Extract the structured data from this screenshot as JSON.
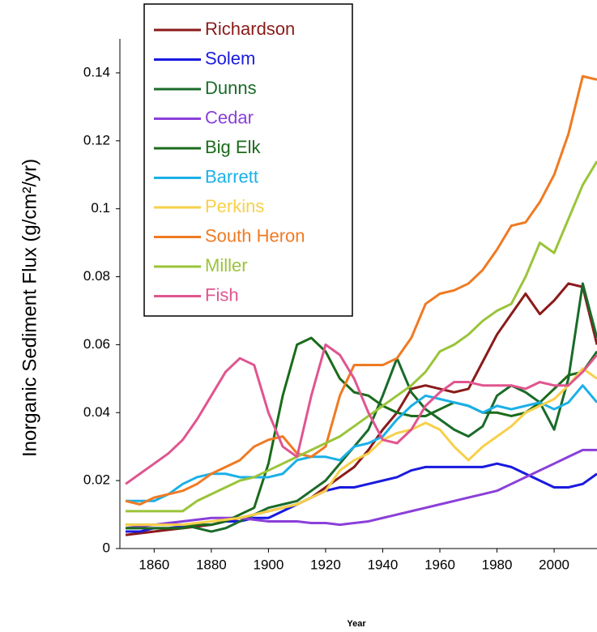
{
  "chart_data": {
    "type": "line",
    "ylabel": "Inorganic Sediment Flux (g/cm²/yr)",
    "xlabel": "Year",
    "x": [
      1850,
      1855,
      1860,
      1865,
      1870,
      1875,
      1880,
      1885,
      1890,
      1895,
      1900,
      1905,
      1910,
      1915,
      1920,
      1925,
      1930,
      1935,
      1940,
      1945,
      1950,
      1955,
      1960,
      1965,
      1970,
      1975,
      1980,
      1985,
      1990,
      1995,
      2000,
      2005,
      2010,
      2015
    ],
    "xlim": [
      1848,
      2015
    ],
    "xticks": [
      1860,
      1880,
      1900,
      1920,
      1940,
      1960,
      1980,
      2000
    ],
    "ylim": [
      0,
      0.15
    ],
    "yticks": [
      0,
      0.02,
      0.04,
      0.06,
      0.08,
      0.1,
      0.12,
      0.14
    ],
    "legend": "upper left",
    "series": [
      {
        "name": "Richardson",
        "color": "#8b1a1a",
        "values": [
          0.004,
          0.0045,
          0.005,
          0.0055,
          0.006,
          0.0065,
          0.007,
          0.008,
          0.009,
          0.01,
          0.011,
          0.012,
          0.013,
          0.015,
          0.018,
          0.021,
          0.024,
          0.029,
          0.035,
          0.04,
          0.047,
          0.048,
          0.047,
          0.046,
          0.047,
          0.055,
          0.063,
          0.069,
          0.075,
          0.069,
          0.073,
          0.078,
          0.077,
          0.06
        ]
      },
      {
        "name": "Solem",
        "color": "#1a1adf",
        "values": [
          0.005,
          0.005,
          0.006,
          0.006,
          0.0065,
          0.007,
          0.007,
          0.008,
          0.008,
          0.009,
          0.009,
          0.011,
          0.013,
          0.015,
          0.017,
          0.018,
          0.018,
          0.019,
          0.02,
          0.021,
          0.023,
          0.024,
          0.024,
          0.024,
          0.024,
          0.024,
          0.025,
          0.024,
          0.022,
          0.02,
          0.018,
          0.018,
          0.019,
          0.022
        ]
      },
      {
        "name": "Dunns",
        "color": "#1a6b2a",
        "values": [
          0.007,
          0.007,
          0.007,
          0.007,
          0.007,
          0.006,
          0.005,
          0.006,
          0.008,
          0.01,
          0.012,
          0.013,
          0.014,
          0.017,
          0.02,
          0.025,
          0.03,
          0.035,
          0.045,
          0.056,
          0.046,
          0.041,
          0.038,
          0.035,
          0.033,
          0.036,
          0.045,
          0.048,
          0.046,
          0.043,
          0.035,
          0.05,
          0.078,
          0.062
        ]
      },
      {
        "name": "Cedar",
        "color": "#8b3fd9",
        "values": [
          0.006,
          0.0065,
          0.007,
          0.0075,
          0.008,
          0.0085,
          0.009,
          0.009,
          0.009,
          0.0085,
          0.008,
          0.008,
          0.008,
          0.0075,
          0.0075,
          0.007,
          0.0075,
          0.008,
          0.009,
          0.01,
          0.011,
          0.012,
          0.013,
          0.014,
          0.015,
          0.016,
          0.017,
          0.019,
          0.021,
          0.023,
          0.025,
          0.027,
          0.029,
          0.029
        ]
      },
      {
        "name": "Big Elk",
        "color": "#1b6b1b",
        "values": [
          0.006,
          0.006,
          0.006,
          0.006,
          0.006,
          0.007,
          0.007,
          0.008,
          0.01,
          0.012,
          0.025,
          0.045,
          0.06,
          0.062,
          0.058,
          0.05,
          0.046,
          0.045,
          0.042,
          0.04,
          0.039,
          0.039,
          0.041,
          0.043,
          0.042,
          0.04,
          0.04,
          0.039,
          0.04,
          0.043,
          0.047,
          0.051,
          0.052,
          0.058
        ]
      },
      {
        "name": "Barrett",
        "color": "#1ab0e8",
        "values": [
          0.014,
          0.014,
          0.014,
          0.016,
          0.019,
          0.021,
          0.022,
          0.022,
          0.021,
          0.021,
          0.021,
          0.022,
          0.026,
          0.027,
          0.027,
          0.026,
          0.03,
          0.031,
          0.033,
          0.038,
          0.042,
          0.045,
          0.044,
          0.043,
          0.042,
          0.04,
          0.042,
          0.041,
          0.042,
          0.043,
          0.041,
          0.043,
          0.048,
          0.043
        ]
      },
      {
        "name": "Perkins",
        "color": "#f7d04a",
        "values": [
          0.007,
          0.007,
          0.007,
          0.007,
          0.007,
          0.0075,
          0.008,
          0.0085,
          0.009,
          0.01,
          0.011,
          0.012,
          0.013,
          0.015,
          0.017,
          0.023,
          0.026,
          0.028,
          0.032,
          0.034,
          0.035,
          0.037,
          0.035,
          0.03,
          0.026,
          0.03,
          0.033,
          0.036,
          0.04,
          0.042,
          0.044,
          0.048,
          0.053,
          0.05
        ]
      },
      {
        "name": "South Heron",
        "color": "#f07a22",
        "values": [
          0.014,
          0.013,
          0.015,
          0.016,
          0.017,
          0.019,
          0.022,
          0.024,
          0.026,
          0.03,
          0.032,
          0.033,
          0.028,
          0.027,
          0.03,
          0.045,
          0.054,
          0.054,
          0.054,
          0.056,
          0.062,
          0.072,
          0.075,
          0.076,
          0.078,
          0.082,
          0.088,
          0.095,
          0.096,
          0.102,
          0.11,
          0.122,
          0.139,
          0.138
        ]
      },
      {
        "name": "Miller",
        "color": "#9ac43a",
        "values": [
          0.011,
          0.011,
          0.011,
          0.011,
          0.011,
          0.014,
          0.016,
          0.018,
          0.02,
          0.021,
          0.023,
          0.025,
          0.027,
          0.029,
          0.031,
          0.033,
          0.036,
          0.039,
          0.042,
          0.045,
          0.048,
          0.052,
          0.058,
          0.06,
          0.063,
          0.067,
          0.07,
          0.072,
          0.08,
          0.09,
          0.087,
          0.097,
          0.107,
          0.114
        ]
      },
      {
        "name": "Fish",
        "color": "#e0558f",
        "values": [
          0.019,
          0.022,
          0.025,
          0.028,
          0.032,
          0.038,
          0.045,
          0.052,
          0.056,
          0.054,
          0.04,
          0.03,
          0.027,
          0.045,
          0.06,
          0.057,
          0.05,
          0.04,
          0.032,
          0.031,
          0.035,
          0.042,
          0.046,
          0.049,
          0.049,
          0.048,
          0.048,
          0.048,
          0.047,
          0.049,
          0.048,
          0.048,
          0.052,
          0.057
        ]
      }
    ]
  }
}
